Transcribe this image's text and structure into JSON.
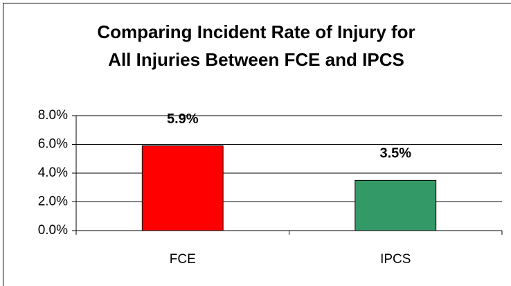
{
  "chart_data": {
    "type": "bar",
    "title": [
      "Comparing Incident Rate of Injury for",
      "All Injuries Between FCE and IPCS"
    ],
    "categories": [
      "FCE",
      "IPCS"
    ],
    "values": [
      5.9,
      3.5
    ],
    "value_labels": [
      "5.9%",
      "3.5%"
    ],
    "colors": [
      "#ff0000",
      "#339966"
    ],
    "ylim": [
      0,
      8
    ],
    "yticks": [
      {
        "value": 0,
        "label": "0.0%"
      },
      {
        "value": 2,
        "label": "2.0%"
      },
      {
        "value": 4,
        "label": "4.0%"
      },
      {
        "value": 6,
        "label": "6.0%"
      },
      {
        "value": 8,
        "label": "8.0%"
      }
    ],
    "grid": true
  }
}
